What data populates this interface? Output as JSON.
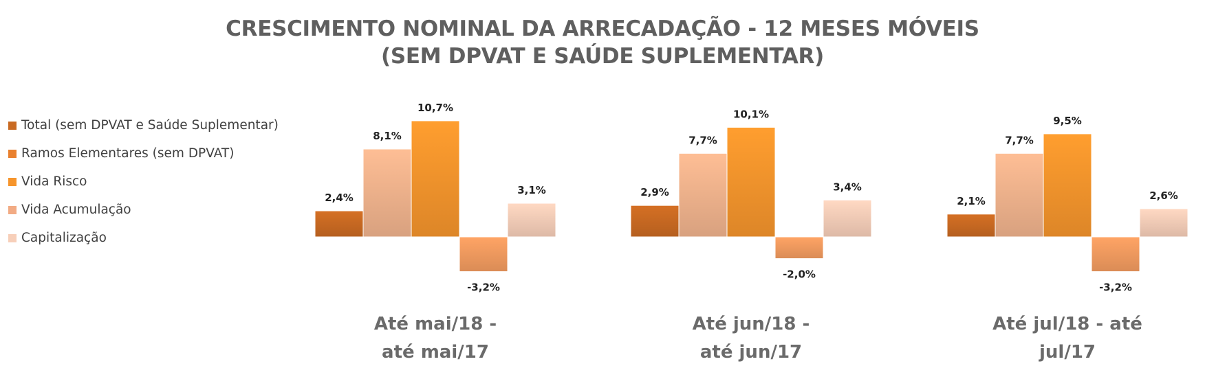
{
  "title_lines": [
    "CRESCIMENTO NOMINAL DA ARRECADAÇÃO - 12 MESES MÓVEIS",
    "(SEM DPVAT E SAÚDE SUPLEMENTAR)"
  ],
  "chart_data": {
    "type": "bar",
    "title": "CRESCIMENTO NOMINAL DA ARRECADAÇÃO - 12 MESES MÓVEIS (SEM DPVAT E SAÚDE SUPLEMENTAR)",
    "unit": "%",
    "legend_position": "left",
    "grid": false,
    "categories": [
      [
        "Até mai/18 -",
        "até mai/17"
      ],
      [
        "Até jun/18 -",
        "até jun/17"
      ],
      [
        "Até jul/18 - até",
        "jul/17"
      ]
    ],
    "series": [
      {
        "name": "Total (sem DPVAT e Saúde Suplementar)",
        "color": "#c96a22",
        "values": [
          2.4,
          2.9,
          2.1
        ],
        "labels": [
          "2,4%",
          "2,9%",
          "2,1%"
        ]
      },
      {
        "name": "Vida Acumulação",
        "color": "#f0b38d",
        "values": [
          8.1,
          7.7,
          7.7
        ],
        "labels": [
          "8,1%",
          "7,7%",
          "7,7%"
        ]
      },
      {
        "name": "Vida Risco",
        "color": "#f6952c",
        "values": [
          10.7,
          10.1,
          9.5
        ],
        "labels": [
          "10,7%",
          "10,1%",
          "9,5%"
        ]
      },
      {
        "name": "Ramos Elementares (sem DPVAT)",
        "color": "#f29b5f",
        "values": [
          -3.2,
          -2.0,
          -3.2
        ],
        "labels": [
          "-3,2%",
          "-2,0%",
          "-3,2%"
        ]
      },
      {
        "name": "Capitalização",
        "color": "#f5cdb8",
        "values": [
          3.1,
          3.4,
          2.6
        ],
        "labels": [
          "3,1%",
          "3,4%",
          "2,6%"
        ]
      }
    ],
    "legend_order": [
      {
        "name": "Total (sem DPVAT e Saúde Suplementar)",
        "color": "#c96a22"
      },
      {
        "name": "Ramos Elementares (sem DPVAT)",
        "color": "#e9802e"
      },
      {
        "name": "Vida Risco",
        "color": "#f6952c"
      },
      {
        "name": "Vida Acumulação",
        "color": "#f2ab84"
      },
      {
        "name": "Capitalização",
        "color": "#f7cfb9"
      }
    ]
  }
}
